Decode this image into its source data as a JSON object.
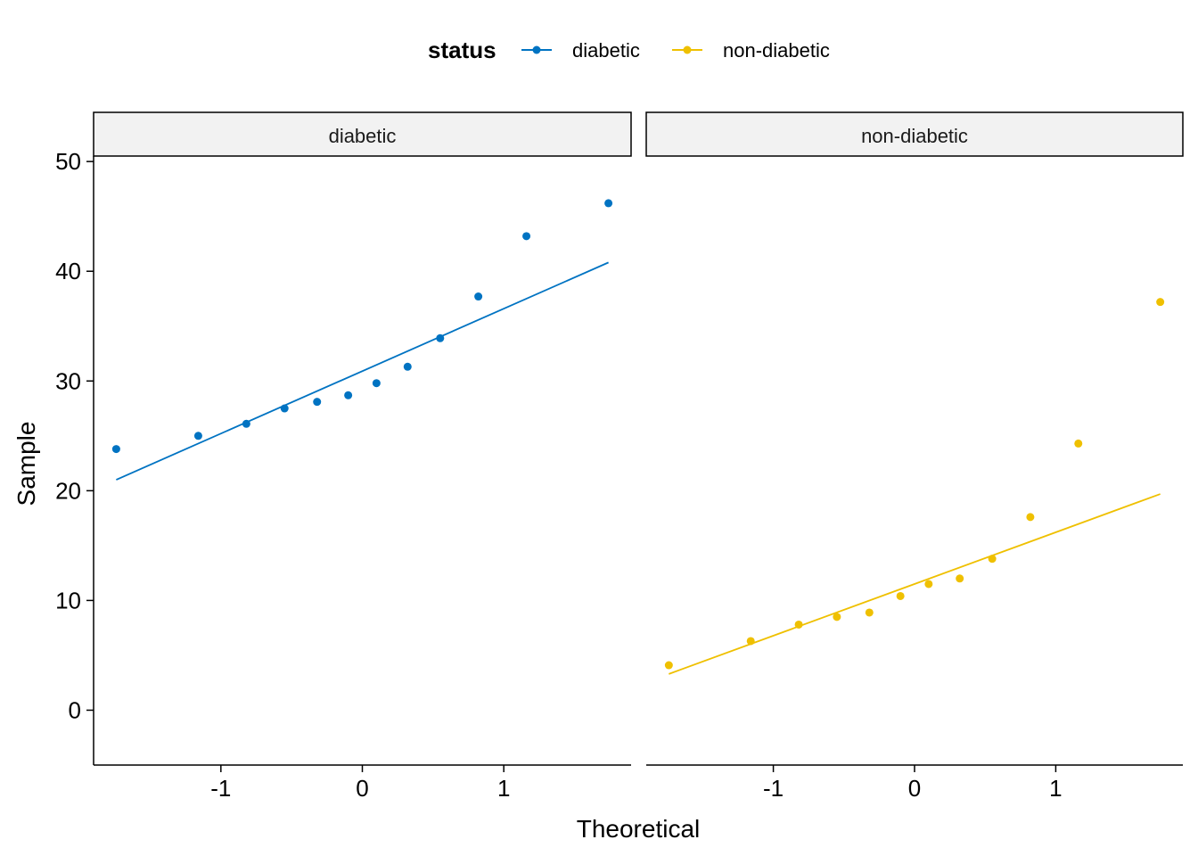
{
  "chart_data": {
    "type": "scatter",
    "subtype": "qq-plot",
    "title": "",
    "xlabel": "Theoretical",
    "ylabel": "Sample",
    "xlim": [
      -1.9,
      1.9
    ],
    "ylim": [
      -5,
      50.5
    ],
    "xticks": [
      -1,
      0,
      1
    ],
    "xtick_labels": [
      "-1",
      "0",
      "1"
    ],
    "yticks": [
      0,
      10,
      20,
      30,
      40,
      50
    ],
    "ytick_labels": [
      "0",
      "10",
      "20",
      "30",
      "40",
      "50"
    ],
    "grid": false,
    "legend": {
      "title": "status",
      "position": "top",
      "entries": [
        "diabetic",
        "non-diabetic"
      ]
    },
    "facets": [
      {
        "label": "diabetic",
        "series_name": "diabetic",
        "color": "#0073C2",
        "points": [
          {
            "x": -1.74,
            "y": 23.8
          },
          {
            "x": -1.16,
            "y": 25.0
          },
          {
            "x": -0.82,
            "y": 26.1
          },
          {
            "x": -0.55,
            "y": 27.5
          },
          {
            "x": -0.32,
            "y": 28.1
          },
          {
            "x": -0.1,
            "y": 28.7
          },
          {
            "x": 0.1,
            "y": 29.8
          },
          {
            "x": 0.32,
            "y": 31.3
          },
          {
            "x": 0.55,
            "y": 33.9
          },
          {
            "x": 0.82,
            "y": 37.7
          },
          {
            "x": 1.16,
            "y": 43.2
          },
          {
            "x": 1.74,
            "y": 46.2
          }
        ],
        "line": {
          "x1": -1.74,
          "y1": 21.0,
          "x2": 1.74,
          "y2": 40.8
        }
      },
      {
        "label": "non-diabetic",
        "series_name": "non-diabetic",
        "color": "#EFC000",
        "points": [
          {
            "x": -1.74,
            "y": 4.1
          },
          {
            "x": -1.16,
            "y": 6.3
          },
          {
            "x": -0.82,
            "y": 7.8
          },
          {
            "x": -0.55,
            "y": 8.5
          },
          {
            "x": -0.32,
            "y": 8.9
          },
          {
            "x": -0.1,
            "y": 10.4
          },
          {
            "x": 0.1,
            "y": 11.5
          },
          {
            "x": 0.32,
            "y": 12.0
          },
          {
            "x": 0.55,
            "y": 13.8
          },
          {
            "x": 0.82,
            "y": 17.6
          },
          {
            "x": 1.16,
            "y": 24.3
          },
          {
            "x": 1.74,
            "y": 37.2
          }
        ],
        "line": {
          "x1": -1.74,
          "y1": 3.3,
          "x2": 1.74,
          "y2": 19.7
        }
      }
    ]
  }
}
